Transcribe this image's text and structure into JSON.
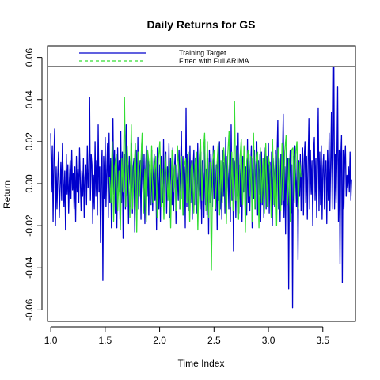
{
  "chart_data": {
    "type": "line",
    "title": "Daily Returns for GS",
    "xlabel": "Time Index",
    "ylabel": "Return",
    "xlim": [
      0.97,
      3.8
    ],
    "ylim": [
      -0.0655,
      0.0655
    ],
    "xticks": [
      1.0,
      1.5,
      2.0,
      2.5,
      3.0,
      3.5
    ],
    "xtick_labels": [
      "1.0",
      "1.5",
      "2.0",
      "2.5",
      "3.0",
      "3.5"
    ],
    "yticks": [
      -0.06,
      -0.04,
      -0.02,
      0.0,
      0.02,
      0.04,
      0.06
    ],
    "ytick_labels": [
      "-0.06",
      "-0.04",
      "-0.02",
      "0.00",
      "0.02",
      "0.04",
      "0.06"
    ],
    "grid": false,
    "legend_position": "top",
    "series": [
      {
        "name": "Training Target",
        "color": "#0000cc",
        "style": "solid",
        "x_start": 1.0,
        "x_end": 3.765,
        "values": [
          0.024,
          -0.004,
          0.018,
          -0.018,
          0.012,
          0.026,
          -0.02,
          0.008,
          -0.012,
          0.004,
          0.015,
          -0.016,
          -0.002,
          0.01,
          -0.008,
          0.019,
          0.003,
          -0.011,
          0.006,
          -0.022,
          0.014,
          -0.005,
          0.009,
          -0.014,
          0.002,
          0.011,
          -0.007,
          0.016,
          -0.003,
          0.005,
          -0.012,
          0.008,
          -0.018,
          0.013,
          -0.004,
          0.007,
          -0.009,
          0.017,
          0.001,
          -0.013,
          0.006,
          -0.006,
          0.012,
          -0.016,
          0.003,
          0.009,
          -0.01,
          0.018,
          -0.002,
          0.005,
          0.041,
          -0.008,
          0.014,
          0.009,
          -0.019,
          0.004,
          -0.012,
          0.02,
          -0.006,
          0.011,
          -0.015,
          0.028,
          -0.004,
          0.008,
          -0.028,
          0.003,
          0.016,
          -0.046,
          0.013,
          -0.007,
          0.022,
          -0.011,
          0.006,
          0.019,
          -0.016,
          0.024,
          -0.009,
          0.012,
          -0.021,
          0.018,
          0.031,
          -0.005,
          0.016,
          -0.014,
          0.009,
          -0.021,
          0.017,
          -0.004,
          0.011,
          -0.017,
          0.025,
          -0.009,
          0.015,
          -0.026,
          0.007,
          0.014,
          -0.012,
          0.028,
          -0.006,
          0.009,
          -0.019,
          0.013,
          0.003,
          -0.011,
          0.019,
          -0.014,
          0.008,
          0.012,
          -0.023,
          0.006,
          0.016,
          -0.008,
          0.022,
          -0.012,
          0.004,
          0.011,
          -0.017,
          0.019,
          0.002,
          -0.009,
          0.014,
          -0.019,
          0.007,
          0.018,
          -0.006,
          0.013,
          -0.015,
          0.009,
          0.003,
          -0.01,
          0.016,
          -0.013,
          0.005,
          0.014,
          -0.008,
          0.011,
          -0.022,
          0.017,
          0.004,
          -0.012,
          0.009,
          -0.018,
          0.013,
          0.006,
          -0.009,
          0.021,
          -0.011,
          0.005,
          0.015,
          -0.014,
          0.008,
          -0.006,
          0.019,
          -0.016,
          0.012,
          0.003,
          -0.01,
          0.017,
          -0.013,
          0.007,
          0.014,
          -0.019,
          0.009,
          0.002,
          -0.008,
          0.016,
          -0.012,
          0.011,
          0.025,
          -0.007,
          0.013,
          -0.015,
          0.008,
          -0.021,
          0.036,
          -0.011,
          0.014,
          0.005,
          -0.013,
          0.018,
          -0.009,
          0.011,
          -0.017,
          0.007,
          0.016,
          -0.01,
          0.012,
          0.003,
          -0.014,
          0.019,
          -0.006,
          0.009,
          -0.012,
          0.015,
          -0.019,
          0.011,
          0.004,
          -0.016,
          0.021,
          -0.01,
          0.007,
          -0.015,
          0.012,
          -0.024,
          0.016,
          -0.009,
          0.014,
          0.002,
          -0.011,
          0.018,
          -0.007,
          0.012,
          -0.013,
          0.009,
          -0.022,
          0.015,
          -0.008,
          0.02,
          -0.012,
          0.005,
          -0.017,
          0.016,
          -0.006,
          0.01,
          -0.014,
          0.022,
          -0.009,
          0.013,
          0.004,
          -0.012,
          0.017,
          -0.018,
          0.028,
          -0.008,
          0.012,
          -0.032,
          0.006,
          0.011,
          -0.016,
          0.018,
          -0.006,
          0.024,
          -0.014,
          0.009,
          -0.011,
          0.015,
          -0.018,
          0.013,
          -0.004,
          0.017,
          -0.012,
          0.008,
          -0.015,
          0.021,
          -0.009,
          0.014,
          -0.013,
          0.007,
          0.018,
          -0.021,
          0.012,
          -0.007,
          0.016,
          -0.012,
          0.009,
          0.02,
          -0.015,
          0.011,
          -0.005,
          0.014,
          -0.018,
          0.015,
          -0.01,
          0.012,
          -0.016,
          0.008,
          0.017,
          -0.012,
          0.013,
          -0.006,
          0.019,
          -0.014,
          0.01,
          -0.008,
          0.015,
          -0.02,
          0.012,
          0.004,
          -0.011,
          0.016,
          -0.007,
          0.013,
          0.03,
          -0.012,
          0.009,
          -0.018,
          0.014,
          -0.01,
          0.011,
          0.033,
          -0.016,
          0.008,
          -0.024,
          0.017,
          -0.006,
          0.012,
          -0.05,
          0.006,
          0.016,
          -0.014,
          0.009,
          -0.059,
          0.013,
          -0.008,
          0.018,
          0.002,
          -0.011,
          0.015,
          -0.036,
          0.011,
          -0.006,
          0.014,
          -0.013,
          0.008,
          0.017,
          -0.015,
          0.012,
          0.02,
          -0.009,
          0.013,
          -0.017,
          0.009,
          0.031,
          -0.012,
          0.016,
          -0.005,
          0.011,
          -0.02,
          0.014,
          0.022,
          -0.008,
          0.012,
          -0.016,
          0.009,
          0.036,
          -0.013,
          0.015,
          -0.01,
          0.018,
          -0.017,
          0.007,
          0.014,
          -0.012,
          0.01,
          0.011,
          -0.019,
          0.016,
          -0.008,
          0.024,
          -0.013,
          0.009,
          0.034,
          -0.012,
          0.017,
          0.065,
          -0.012,
          0.014,
          -0.009,
          0.011,
          0.046,
          -0.018,
          0.016,
          -0.038,
          0.012,
          0.023,
          -0.047,
          0.016,
          -0.012,
          0.01,
          0.018,
          -0.006,
          0.004,
          -0.002,
          0.008,
          -0.004,
          0.015,
          -0.008,
          0.002
        ]
      },
      {
        "name": "Fitted with Full ARIMA",
        "color": "#33dd33",
        "style": "dashed",
        "x_start": 1.54,
        "x_end": 3.3,
        "values": [
          0.003,
          -0.009,
          0.02,
          -0.018,
          0.008,
          0.014,
          -0.013,
          0.006,
          -0.022,
          0.012,
          -0.004,
          0.041,
          -0.011,
          0.018,
          0.004,
          -0.016,
          0.028,
          -0.012,
          0.006,
          0.019,
          -0.023,
          0.015,
          -0.006,
          0.009,
          0.024,
          -0.014,
          0.007,
          -0.018,
          0.016,
          0.01,
          -0.01,
          0.018,
          -0.009,
          0.005,
          0.013,
          -0.016,
          0.012,
          0.02,
          -0.011,
          0.007,
          -0.017,
          0.014,
          0.004,
          -0.008,
          0.011,
          -0.021,
          0.016,
          -0.004,
          0.009,
          -0.013,
          0.018,
          0.006,
          -0.012,
          0.013,
          -0.015,
          0.008,
          0.012,
          -0.009,
          0.015,
          -0.018,
          0.007,
          0.011,
          -0.014,
          0.009,
          0.015,
          -0.022,
          0.012,
          0.021,
          -0.008,
          0.014,
          0.024,
          -0.013,
          0.02,
          -0.016,
          0.01,
          -0.041,
          0.011,
          0.016,
          -0.012,
          0.008,
          0.019,
          -0.015,
          0.011,
          -0.009,
          0.017,
          0.007,
          -0.019,
          0.013,
          0.025,
          -0.011,
          0.015,
          -0.013,
          0.039,
          -0.008,
          0.016,
          -0.017,
          0.012,
          0.021,
          -0.01,
          0.018,
          -0.023,
          0.011,
          0.016,
          -0.006,
          0.013,
          -0.018,
          0.024,
          -0.012,
          0.009,
          0.015,
          -0.021,
          0.017,
          -0.009,
          0.012,
          -0.014,
          0.019,
          -0.011,
          0.013,
          0.008,
          -0.016,
          0.021,
          -0.01,
          0.014,
          -0.02,
          0.017,
          0.011,
          -0.013,
          0.019,
          -0.008,
          0.015,
          0.023,
          -0.01,
          0.012,
          -0.018,
          0.016,
          0.017,
          -0.009,
          0.014,
          0.02,
          -0.012,
          0.01,
          0.003
        ]
      }
    ]
  }
}
